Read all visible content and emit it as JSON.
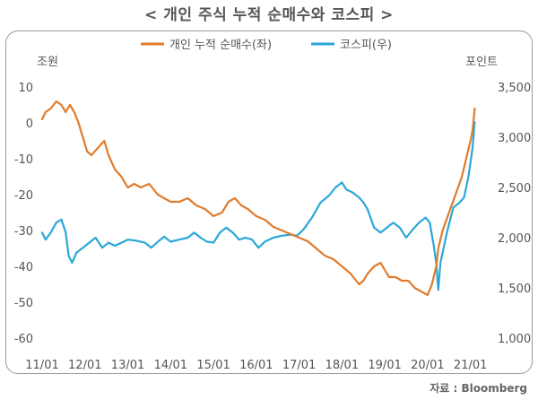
{
  "title": "< 개인 주식 누적 순매수와 코스피 >",
  "source": "자료 : Bloomberg",
  "colors": {
    "individual": "#e07b2c",
    "kospi": "#2aa7d8"
  },
  "chart_data": {
    "type": "line",
    "title": "< 개인 주식 누적 순매수와 코스피 >",
    "x_ticks": [
      "11/01",
      "12/01",
      "13/01",
      "14/01",
      "15/01",
      "16/01",
      "17/01",
      "18/01",
      "19/01",
      "20/01",
      "21/01"
    ],
    "x_range": [
      2011.0,
      2021.3
    ],
    "left_axis": {
      "label": "조원",
      "range": [
        -60,
        10
      ],
      "ticks": [
        "10",
        "0",
        "-10",
        "-20",
        "-30",
        "-40",
        "-50",
        "-60"
      ]
    },
    "right_axis": {
      "label": "포인트",
      "range": [
        1000,
        3500
      ],
      "ticks": [
        "3,500",
        "3,000",
        "2,500",
        "2,000",
        "1,500",
        "1,000"
      ]
    },
    "legend_position": "top-center",
    "grid": false,
    "series": [
      {
        "name": "개인 누적 순매수(좌)",
        "axis": "left",
        "x": [
          2011.0,
          2011.08,
          2011.2,
          2011.33,
          2011.45,
          2011.55,
          2011.65,
          2011.75,
          2011.85,
          2011.95,
          2012.05,
          2012.15,
          2012.3,
          2012.45,
          2012.55,
          2012.7,
          2012.85,
          2013.0,
          2013.15,
          2013.3,
          2013.5,
          2013.7,
          2013.85,
          2014.0,
          2014.2,
          2014.4,
          2014.6,
          2014.8,
          2015.0,
          2015.2,
          2015.35,
          2015.5,
          2015.65,
          2015.8,
          2016.0,
          2016.2,
          2016.4,
          2016.6,
          2016.8,
          2017.0,
          2017.2,
          2017.4,
          2017.6,
          2017.8,
          2018.0,
          2018.2,
          2018.4,
          2018.5,
          2018.6,
          2018.75,
          2018.9,
          2019.0,
          2019.1,
          2019.25,
          2019.4,
          2019.55,
          2019.7,
          2019.85,
          2020.0,
          2020.1,
          2020.2,
          2020.25,
          2020.35,
          2020.5,
          2020.65,
          2020.8,
          2020.9,
          2021.0,
          2021.05,
          2021.1
        ],
        "values": [
          1,
          3,
          4,
          6,
          5,
          3,
          5,
          3,
          0,
          -4,
          -8,
          -9,
          -7,
          -5,
          -9,
          -13,
          -15,
          -18,
          -17,
          -18,
          -17,
          -20,
          -21,
          -22,
          -22,
          -21,
          -23,
          -24,
          -26,
          -25,
          -22,
          -21,
          -23,
          -24,
          -26,
          -27,
          -29,
          -30,
          -31,
          -32,
          -33,
          -35,
          -37,
          -38,
          -40,
          -42,
          -45,
          -44,
          -42,
          -40,
          -39,
          -41,
          -43,
          -43,
          -44,
          -44,
          -46,
          -47,
          -48,
          -45,
          -40,
          -35,
          -30,
          -25,
          -20,
          -15,
          -10,
          -5,
          -2,
          4
        ]
      },
      {
        "name": "코스피(우)",
        "axis": "right",
        "x": [
          2011.0,
          2011.08,
          2011.2,
          2011.33,
          2011.45,
          2011.55,
          2011.62,
          2011.7,
          2011.8,
          2011.95,
          2012.1,
          2012.25,
          2012.4,
          2012.55,
          2012.7,
          2012.85,
          2013.0,
          2013.2,
          2013.4,
          2013.55,
          2013.7,
          2013.85,
          2014.0,
          2014.2,
          2014.4,
          2014.55,
          2014.7,
          2014.85,
          2015.0,
          2015.15,
          2015.3,
          2015.45,
          2015.6,
          2015.75,
          2015.9,
          2016.05,
          2016.2,
          2016.4,
          2016.6,
          2016.8,
          2016.95,
          2017.1,
          2017.3,
          2017.5,
          2017.7,
          2017.85,
          2018.0,
          2018.1,
          2018.25,
          2018.4,
          2018.5,
          2018.6,
          2018.75,
          2018.9,
          2019.05,
          2019.2,
          2019.35,
          2019.5,
          2019.65,
          2019.8,
          2019.95,
          2020.05,
          2020.15,
          2020.2,
          2020.25,
          2020.3,
          2020.45,
          2020.6,
          2020.75,
          2020.85,
          2020.95,
          2021.05,
          2021.1
        ],
        "values": [
          2050,
          1980,
          2050,
          2150,
          2180,
          2050,
          1820,
          1750,
          1850,
          1900,
          1950,
          2000,
          1900,
          1950,
          1920,
          1950,
          1980,
          1970,
          1950,
          1900,
          1960,
          2010,
          1960,
          1980,
          2000,
          2050,
          2000,
          1960,
          1950,
          2050,
          2100,
          2050,
          1980,
          2000,
          1980,
          1900,
          1960,
          2000,
          2020,
          2030,
          2020,
          2080,
          2200,
          2350,
          2420,
          2500,
          2550,
          2480,
          2450,
          2400,
          2350,
          2280,
          2100,
          2050,
          2100,
          2150,
          2100,
          2000,
          2080,
          2150,
          2200,
          2150,
          1900,
          1750,
          1480,
          1750,
          2050,
          2300,
          2350,
          2400,
          2600,
          2900,
          3150
        ]
      }
    ]
  }
}
